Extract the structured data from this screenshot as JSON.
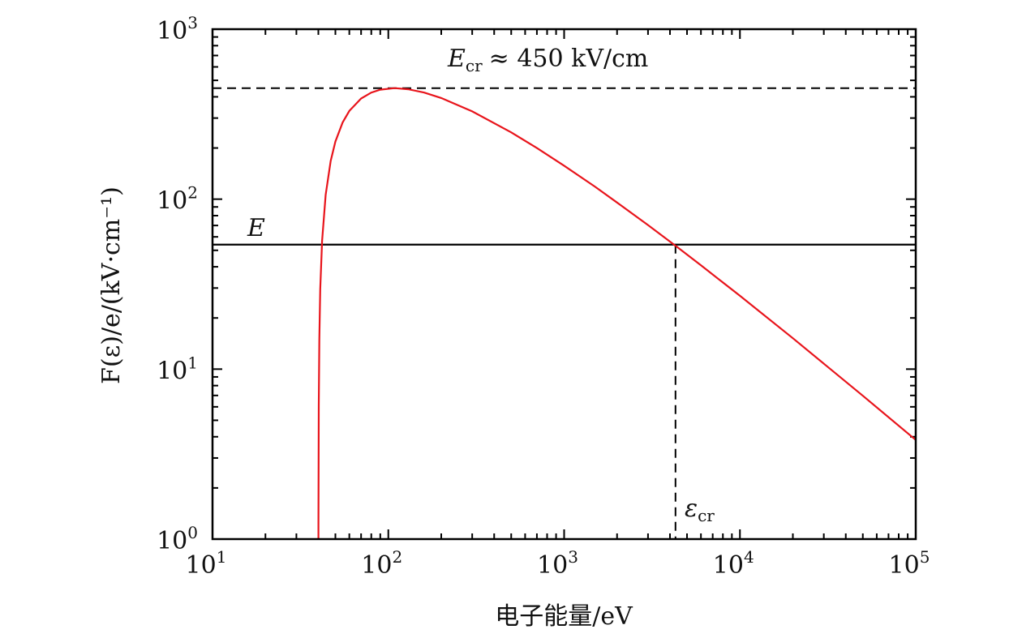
{
  "chart_data": {
    "type": "line",
    "xlabel": "电子能量/eV",
    "ylabel": "F(ε)/e/(kV·cm⁻¹)",
    "xscale": "log",
    "yscale": "log",
    "xlim": [
      10,
      100000
    ],
    "ylim": [
      1,
      1000
    ],
    "x_ticks": [
      {
        "base": "10",
        "exp": "1",
        "value": 10
      },
      {
        "base": "10",
        "exp": "2",
        "value": 100
      },
      {
        "base": "10",
        "exp": "3",
        "value": 1000
      },
      {
        "base": "10",
        "exp": "4",
        "value": 10000
      },
      {
        "base": "10",
        "exp": "5",
        "value": 100000
      }
    ],
    "y_ticks": [
      {
        "base": "10",
        "exp": "0",
        "value": 1
      },
      {
        "base": "10",
        "exp": "1",
        "value": 10
      },
      {
        "base": "10",
        "exp": "2",
        "value": 100
      },
      {
        "base": "10",
        "exp": "3",
        "value": 1000
      }
    ],
    "grid": false,
    "series": [
      {
        "color": "#e8141b",
        "x": [
          40.04,
          40.2,
          40.5,
          41,
          42,
          44,
          47,
          50,
          55,
          60,
          70,
          80,
          90,
          108.7,
          130,
          160,
          200,
          300,
          500,
          700,
          1000,
          1500,
          2000,
          3000,
          4370,
          6000,
          10000,
          20000,
          50000,
          100000
        ],
        "y": [
          1.2,
          6.07,
          15.0,
          29.4,
          56.8,
          105.9,
          167.8,
          218.2,
          283.2,
          330.5,
          390.9,
          423.7,
          440.6,
          449.9,
          443.4,
          423.7,
          393.5,
          328.4,
          247.0,
          200.0,
          157.4,
          118.2,
          95.6,
          70.4,
          52.5,
          40.8,
          27.0,
          15.2,
          6.97,
          3.83
        ]
      }
    ],
    "reference_lines": {
      "E_cr": {
        "y": 450,
        "style": "dashed",
        "label_main": "E",
        "label_sub": "cr",
        "label_rest": "≈ 450 kV/cm"
      },
      "E": {
        "y": 54,
        "style": "solid",
        "label": "E"
      },
      "eps_cr": {
        "x": 4300,
        "style": "dashed",
        "label_main": "ε",
        "label_sub": "cr"
      }
    }
  }
}
